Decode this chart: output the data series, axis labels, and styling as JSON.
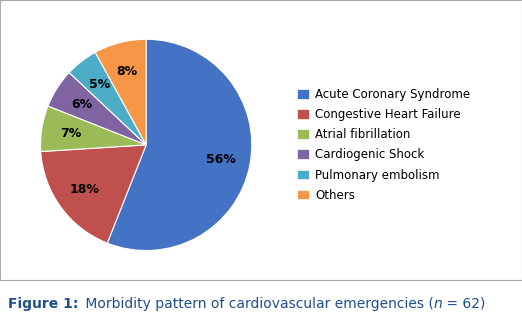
{
  "labels": [
    "Acute Coronary Syndrome",
    "Congestive Heart Failure",
    "Atrial fibrillation",
    "Cardiogenic Shock",
    "Pulmonary embolism",
    "Others"
  ],
  "values": [
    56,
    18,
    7,
    6,
    5,
    8
  ],
  "colors": [
    "#4472C4",
    "#C0504D",
    "#9BBB59",
    "#8064A2",
    "#4BACC6",
    "#F79646"
  ],
  "pct_labels": [
    "56%",
    "18%",
    "7%",
    "6%",
    "5%",
    "8%"
  ],
  "startangle": 90,
  "caption_color": "#1F4E8C",
  "background_color": "#FFFFFF",
  "legend_fontsize": 8.5,
  "pct_fontsize": 9,
  "caption_fontsize": 10
}
